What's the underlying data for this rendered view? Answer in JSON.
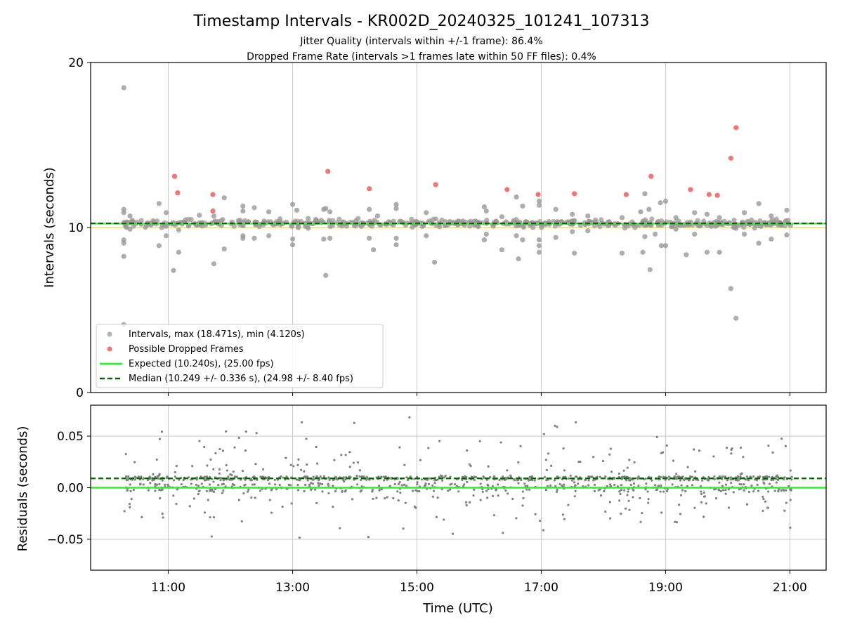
{
  "title": "Timestamp Intervals - KR002D_20240325_101241_107313",
  "subtitle_lines": [
    "Jitter Quality (intervals within +/-1 frame): 86.4%",
    "Dropped Frame Rate (intervals >1 frames late within 50 FF files): 0.4%"
  ],
  "colors": {
    "intervals": "#999999",
    "dropped": "#f25c5c",
    "expected": "#1aff1a",
    "median": "#006400",
    "residuals": "#808080",
    "threshold": "#ffd966",
    "grid": "#c8c8c8"
  },
  "chart_data": [
    {
      "type": "scatter",
      "ylabel": "Intervals (seconds)",
      "xlim": [
        "09:45",
        "21:35"
      ],
      "ylim": [
        0,
        20
      ],
      "y_ticks": [
        "0",
        "10",
        "20"
      ],
      "grid": "vertical",
      "legend_position": "lower-left",
      "legend": [
        "Intervals, max (18.471s), min (4.120s)",
        "Possible Dropped Frames",
        "Expected (10.240s), (25.00 fps)",
        "Median (10.249 +/- 0.336 s), (24.98 +/- 8.40 fps)"
      ],
      "series": [
        {
          "name": "Intervals, max (18.471s), min (4.120s)",
          "points": [
            [
              "10:17",
              18.47
            ],
            [
              "10:17",
              4.12
            ],
            [
              "10:17",
              8.25
            ],
            [
              "10:17",
              9.05
            ],
            [
              "10:17",
              9.25
            ],
            [
              "10:17",
              10.9
            ],
            [
              "10:17",
              11.1
            ],
            [
              "10:23",
              9.9
            ],
            [
              "10:23",
              10.7
            ],
            [
              "10:51",
              11.45
            ],
            [
              "10:51",
              8.9
            ],
            [
              "10:58",
              9.5
            ],
            [
              "10:58",
              10.9
            ],
            [
              "11:05",
              7.4
            ],
            [
              "11:10",
              8.5
            ],
            [
              "11:10",
              9.85
            ],
            [
              "11:30",
              10.75
            ],
            [
              "11:44",
              7.8
            ],
            [
              "11:44",
              10.7
            ],
            [
              "11:54",
              8.7
            ],
            [
              "11:54",
              11.8
            ],
            [
              "12:12",
              9.35
            ],
            [
              "12:12",
              11.3
            ],
            [
              "12:12",
              9.5
            ],
            [
              "12:12",
              11.0
            ],
            [
              "12:23",
              9.35
            ],
            [
              "12:23",
              11.2
            ],
            [
              "12:37",
              9.5
            ],
            [
              "12:37",
              10.95
            ],
            [
              "13:00",
              11.4
            ],
            [
              "13:00",
              9.3
            ],
            [
              "13:00",
              8.95
            ],
            [
              "13:04",
              11.05
            ],
            [
              "13:15",
              10.55
            ],
            [
              "13:15",
              9.95
            ],
            [
              "13:30",
              9.3
            ],
            [
              "13:30",
              11.1
            ],
            [
              "13:32",
              7.1
            ],
            [
              "13:32",
              11.15
            ],
            [
              "13:36",
              9.35
            ],
            [
              "13:36",
              10.95
            ],
            [
              "14:14",
              9.35
            ],
            [
              "14:14",
              11.1
            ],
            [
              "14:18",
              8.65
            ],
            [
              "14:22",
              10.7
            ],
            [
              "14:40",
              11.4
            ],
            [
              "14:40",
              9.35
            ],
            [
              "14:40",
              8.95
            ],
            [
              "14:40",
              11.15
            ],
            [
              "15:09",
              9.5
            ],
            [
              "15:09",
              10.9
            ],
            [
              "15:17",
              7.9
            ],
            [
              "16:05",
              9.25
            ],
            [
              "16:05",
              11.25
            ],
            [
              "16:07",
              9.6
            ],
            [
              "16:07",
              11.0
            ],
            [
              "16:22",
              10.65
            ],
            [
              "16:22",
              8.65
            ],
            [
              "16:36",
              11.85
            ],
            [
              "16:36",
              9.5
            ],
            [
              "16:38",
              8.1
            ],
            [
              "16:42",
              9.25
            ],
            [
              "16:42",
              11.3
            ],
            [
              "16:58",
              8.5
            ],
            [
              "16:58",
              8.9
            ],
            [
              "16:58",
              9.25
            ],
            [
              "16:58",
              11.35
            ],
            [
              "16:58",
              11.6
            ],
            [
              "17:14",
              9.4
            ],
            [
              "17:14",
              11.1
            ],
            [
              "17:30",
              9.75
            ],
            [
              "17:30",
              10.8
            ],
            [
              "17:32",
              8.45
            ],
            [
              "17:45",
              10.7
            ],
            [
              "17:45",
              9.8
            ],
            [
              "18:18",
              8.45
            ],
            [
              "18:18",
              10.6
            ],
            [
              "18:36",
              10.95
            ],
            [
              "18:38",
              8.5
            ],
            [
              "18:40",
              12.05
            ],
            [
              "18:40",
              9.45
            ],
            [
              "18:44",
              11.1
            ],
            [
              "18:45",
              7.45
            ],
            [
              "18:50",
              9.6
            ],
            [
              "18:55",
              11.5
            ],
            [
              "18:56",
              8.9
            ],
            [
              "19:00",
              11.6
            ],
            [
              "19:00",
              8.9
            ],
            [
              "19:10",
              10.6
            ],
            [
              "19:10",
              9.9
            ],
            [
              "19:20",
              8.35
            ],
            [
              "19:28",
              10.9
            ],
            [
              "19:28",
              9.6
            ],
            [
              "19:40",
              8.5
            ],
            [
              "19:40",
              10.8
            ],
            [
              "19:52",
              8.5
            ],
            [
              "19:52",
              10.6
            ],
            [
              "20:03",
              6.3
            ],
            [
              "20:08",
              4.5
            ],
            [
              "20:08",
              9.95
            ],
            [
              "20:16",
              9.6
            ],
            [
              "20:16",
              10.9
            ],
            [
              "20:30",
              11.45
            ],
            [
              "20:30",
              9.05
            ],
            [
              "20:42",
              9.3
            ],
            [
              "20:42",
              10.7
            ],
            [
              "20:57",
              11.05
            ],
            [
              "20:57",
              9.55
            ]
          ],
          "band": {
            "from": "10:17",
            "to": "21:02",
            "center": 10.25,
            "spread": 0.25
          }
        },
        {
          "name": "Possible Dropped Frames",
          "points": [
            [
              "11:06",
              13.1
            ],
            [
              "11:09",
              12.1
            ],
            [
              "11:43",
              12.0
            ],
            [
              "11:43",
              11.0
            ],
            [
              "13:34",
              13.4
            ],
            [
              "14:14",
              12.35
            ],
            [
              "15:18",
              12.6
            ],
            [
              "16:27",
              12.3
            ],
            [
              "16:57",
              12.0
            ],
            [
              "17:32",
              12.05
            ],
            [
              "18:22",
              12.0
            ],
            [
              "18:46",
              13.1
            ],
            [
              "19:24",
              12.3
            ],
            [
              "19:42",
              12.0
            ],
            [
              "19:50",
              11.95
            ],
            [
              "20:03",
              14.2
            ],
            [
              "20:08",
              16.05
            ]
          ]
        }
      ],
      "lines": [
        {
          "name": "Expected (10.240s), (25.00 fps)",
          "y": 10.24
        },
        {
          "name": "Median (10.249 +/- 0.336 s), (24.98 +/- 8.40 fps)",
          "y": 10.249
        }
      ],
      "threshold_y": 10.0
    },
    {
      "type": "scatter",
      "xlabel": "Time (UTC)",
      "ylabel": "Residuals (seconds)",
      "xlim": [
        "09:45",
        "21:35"
      ],
      "ylim": [
        -0.08,
        0.08
      ],
      "x_ticks": [
        "11:00",
        "13:00",
        "15:00",
        "17:00",
        "19:00",
        "21:00"
      ],
      "y_ticks": [
        "0.05",
        "0.00",
        "−0.05"
      ],
      "grid": "both",
      "series": [
        {
          "name": "Residuals",
          "x_range": [
            "10:17",
            "21:02"
          ],
          "count": 1100,
          "band_center": 0.009,
          "band_spread": 0.004,
          "scatter_spread": 0.03
        }
      ],
      "lines": [
        {
          "name": "Expected",
          "y": 0.0
        },
        {
          "name": "Median",
          "y": 0.009
        }
      ]
    }
  ]
}
